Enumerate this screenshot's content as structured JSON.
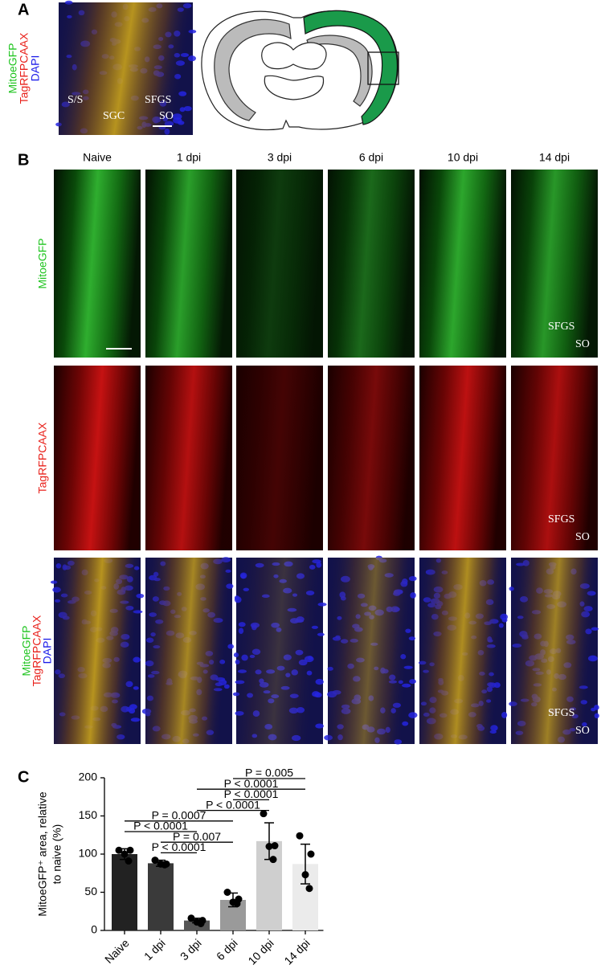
{
  "panel_a": {
    "label": "A",
    "channels": [
      "MitoeGFP",
      "TagRFPCAAX",
      "DAPI"
    ],
    "regions": [
      "S/S",
      "SGC",
      "SFGS",
      "SO"
    ]
  },
  "panel_b": {
    "label": "B",
    "columns": [
      "Naive",
      "1 dpi",
      "3 dpi",
      "6 dpi",
      "10 dpi",
      "14 dpi"
    ],
    "rows": [
      {
        "channels": [
          "MitoeGFP"
        ]
      },
      {
        "channels": [
          "TagRFPCAAX"
        ]
      },
      {
        "channels": [
          "MitoeGFP",
          "TagRFPCAAX",
          "DAPI"
        ]
      }
    ],
    "regions": [
      "SFGS",
      "SO"
    ]
  },
  "chart_data": {
    "type": "bar",
    "panel_label": "C",
    "y_label": [
      "MitoeGFP⁺ area, relative",
      "to naive (%)"
    ],
    "categories": [
      "Naive",
      "1 dpi",
      "3 dpi",
      "6 dpi",
      "10 dpi",
      "14 dpi"
    ],
    "values": [
      100,
      88,
      13,
      40,
      117,
      87
    ],
    "errors": [
      7,
      4,
      3,
      9,
      24,
      26
    ],
    "points": [
      [
        105,
        105,
        100,
        91
      ],
      [
        92,
        87,
        87,
        86
      ],
      [
        16,
        13,
        11,
        9
      ],
      [
        50,
        41,
        37,
        35
      ],
      [
        153,
        111,
        110,
        93
      ],
      [
        124,
        100,
        73,
        55
      ]
    ],
    "colors": [
      "#222222",
      "#3a3a3a",
      "#555555",
      "#9a9a9a",
      "#cfcfcf",
      "#ebebeb"
    ],
    "ylim": [
      0,
      200
    ],
    "yticks": [
      0,
      50,
      100,
      150,
      200
    ],
    "comparisons": [
      "P = 0.005",
      "P < 0.0001",
      "P < 0.0001",
      "P < 0.0001",
      "P = 0.0007",
      "P < 0.0001",
      "P = 0.007",
      "P < 0.0001"
    ]
  }
}
